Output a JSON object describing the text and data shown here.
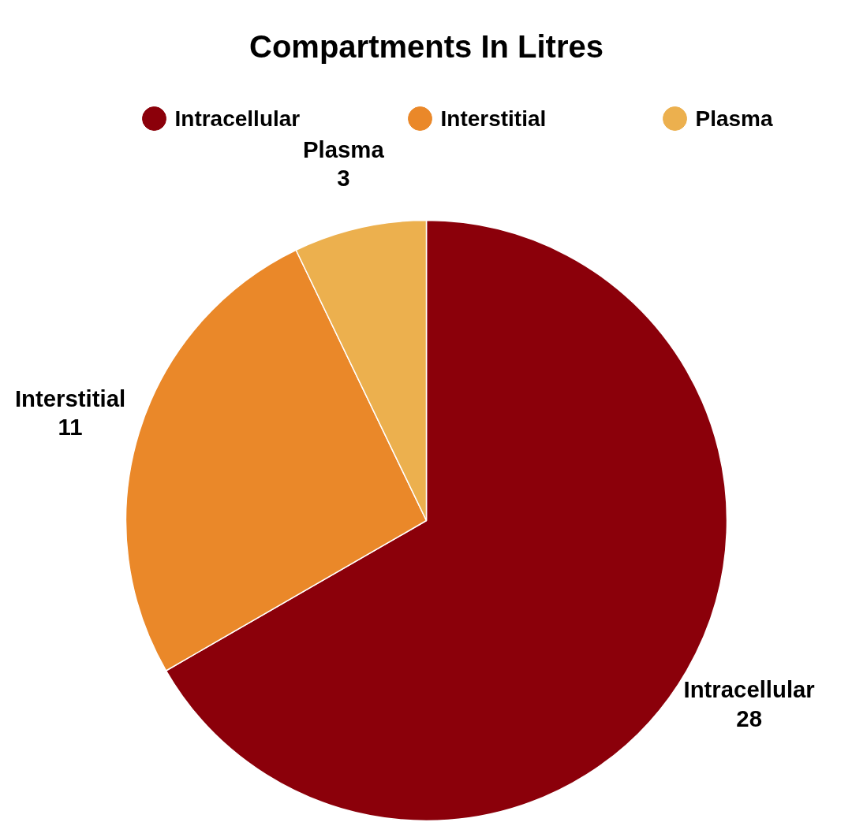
{
  "chart_data": {
    "type": "pie",
    "title": "Compartments In Litres",
    "categories": [
      "Intracellular",
      "Interstitial",
      "Plasma"
    ],
    "values": [
      28,
      11,
      3
    ],
    "colors": [
      "#8b000a",
      "#ea8829",
      "#ecb04e"
    ],
    "data_labels": true,
    "legend": "top"
  }
}
